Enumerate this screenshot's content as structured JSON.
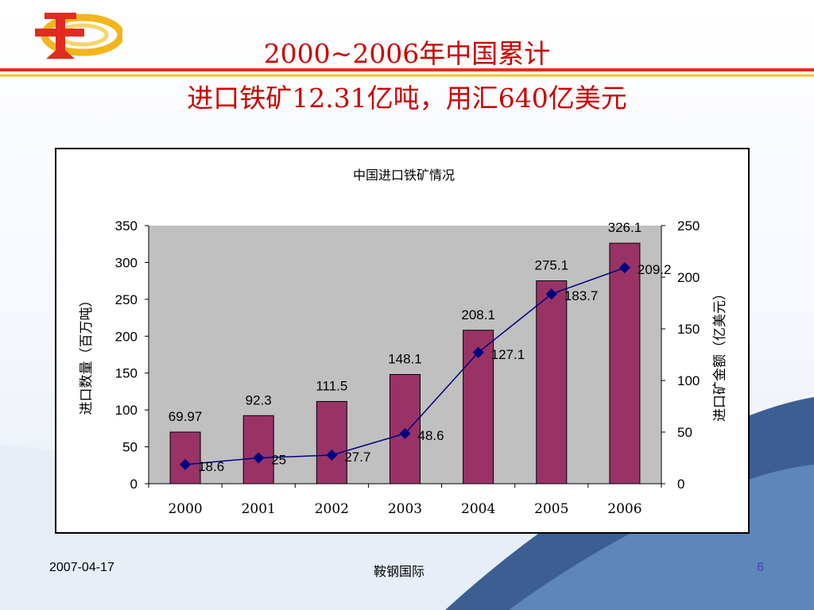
{
  "slide": {
    "title_line1": "2000~2006年中国累计",
    "title_line2": "进口铁矿12.31亿吨，用汇640亿美元"
  },
  "footer": {
    "date": "2007-04-17",
    "org": "鞍钢国际",
    "page": "6"
  },
  "colors": {
    "title": "#cc0000",
    "bar": "#993366",
    "line": "#000080",
    "plot_bg": "#c0c0c0",
    "page_number": "#4b3fbf"
  },
  "chart_data": {
    "type": "bar",
    "title": "中国进口铁矿情况",
    "categories": [
      "2000",
      "2001",
      "2002",
      "2003",
      "2004",
      "2005",
      "2006"
    ],
    "series": [
      {
        "kind": "bar",
        "axis": "left",
        "values": [
          69.97,
          92.3,
          111.5,
          148.1,
          208.1,
          275.1,
          326.1
        ]
      },
      {
        "kind": "line",
        "axis": "right",
        "values": [
          18.6,
          25,
          27.7,
          48.6,
          127.1,
          183.7,
          209.2
        ]
      }
    ],
    "ylabel": "进口数量（百万吨）",
    "y2label": "进口矿金额（亿美元）",
    "ylim": [
      0,
      350
    ],
    "y2lim": [
      0,
      250
    ],
    "yticks": [
      0,
      50,
      100,
      150,
      200,
      250,
      300,
      350
    ],
    "y2ticks": [
      0,
      50,
      100,
      150,
      200,
      250
    ],
    "grid": false,
    "legend": "none"
  }
}
